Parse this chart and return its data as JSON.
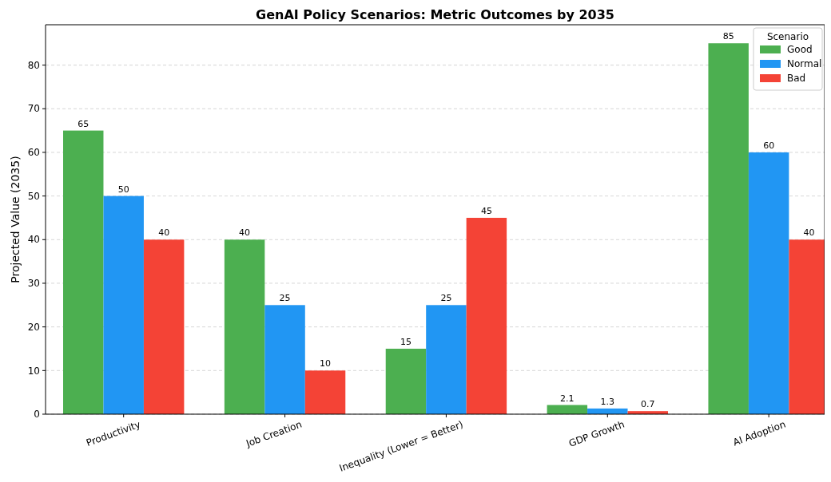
{
  "chart_data": {
    "type": "bar",
    "title": "GenAI Policy Scenarios: Metric Outcomes by 2035",
    "ylabel": "Projected Value (2035)",
    "legend_title": "Scenario",
    "categories": [
      "Productivity",
      "Job Creation",
      "Inequality (Lower = Better)",
      "GDP Growth",
      "AI Adoption"
    ],
    "series": [
      {
        "name": "Good",
        "color": "#4caf50",
        "values": [
          65,
          40,
          15,
          2.1,
          85
        ]
      },
      {
        "name": "Normal",
        "color": "#2196f3",
        "values": [
          50,
          25,
          25,
          1.3,
          60
        ]
      },
      {
        "name": "Bad",
        "color": "#f44336",
        "values": [
          40,
          10,
          45,
          0.7,
          40
        ]
      }
    ],
    "ylim": [
      0,
      89.25
    ],
    "yticks": [
      0,
      10,
      20,
      30,
      40,
      50,
      60,
      70,
      80
    ],
    "grid": "y",
    "legend": "top right",
    "data_labels": true
  }
}
